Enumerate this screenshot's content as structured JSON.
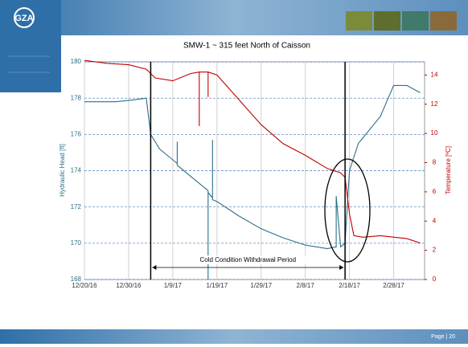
{
  "slide": {
    "logo": "GZA",
    "footer": "Page | 20"
  },
  "chart_data": {
    "type": "line",
    "title": "SMW-1 ~ 315 feet North of Caisson",
    "ylabel": "Hydraulic Head [ft]",
    "y2label": "Temperature [ºC]",
    "xlim": [
      "2016-12-20",
      "2017-03-07"
    ],
    "xticks": [
      {
        "value": "2016-12-20",
        "label": "12/20/16"
      },
      {
        "value": "2016-12-30",
        "label": "12/30/16"
      },
      {
        "value": "2017-01-09",
        "label": "1/9/17"
      },
      {
        "value": "2017-01-19",
        "label": "1/19/17"
      },
      {
        "value": "2017-01-29",
        "label": "1/29/17"
      },
      {
        "value": "2017-02-08",
        "label": "2/8/17"
      },
      {
        "value": "2017-02-18",
        "label": "2/18/17"
      },
      {
        "value": "2017-02-28",
        "label": "2/28/17"
      }
    ],
    "ylim": [
      168,
      180
    ],
    "yticks": [
      168,
      170,
      172,
      174,
      176,
      178,
      180
    ],
    "y2lim": [
      0,
      14.9
    ],
    "y2ticks": [
      0,
      2,
      4,
      6,
      8,
      10,
      12,
      14
    ],
    "grid": true,
    "annotation": {
      "text": "Cold Condition Withdrawal Period",
      "x": [
        "2017-01-04",
        "2017-02-17"
      ]
    },
    "series": [
      {
        "color": "#2c6e8a",
        "x": [
          "2016-12-20",
          "2016-12-23",
          "2016-12-27",
          "2016-12-31",
          "2017-01-03",
          "2017-01-04",
          "2017-01-06",
          "2017-01-09",
          "2017-01-10",
          "2017-01-10",
          "2017-01-10",
          "2017-01-14",
          "2017-01-17",
          "2017-01-17",
          "2017-01-17",
          "2017-01-18",
          "2017-01-18",
          "2017-01-18",
          "2017-01-19",
          "2017-01-24",
          "2017-01-29",
          "2017-02-03",
          "2017-02-08",
          "2017-02-13",
          "2017-02-15",
          "2017-02-15",
          "2017-02-16",
          "2017-02-17",
          "2017-02-18",
          "2017-02-20",
          "2017-02-25",
          "2017-02-28",
          "2017-03-03",
          "2017-03-06"
        ],
        "values": [
          177.8,
          177.8,
          177.8,
          177.9,
          178.0,
          176.0,
          175.2,
          174.6,
          174.4,
          175.6,
          174.3,
          173.5,
          172.9,
          168.0,
          172.8,
          172.5,
          175.7,
          172.4,
          172.3,
          171.5,
          170.8,
          170.3,
          169.9,
          169.7,
          169.8,
          172.6,
          169.8,
          170.0,
          174.0,
          175.5,
          177.0,
          178.7,
          178.7,
          178.3
        ],
        "axis": "y"
      },
      {
        "color": "#c00000",
        "x": [
          "2016-12-20",
          "2016-12-25",
          "2016-12-30",
          "2017-01-03",
          "2017-01-05",
          "2017-01-09",
          "2017-01-13",
          "2017-01-15",
          "2017-01-15",
          "2017-01-15",
          "2017-01-17",
          "2017-01-17",
          "2017-01-17",
          "2017-01-19",
          "2017-01-24",
          "2017-01-29",
          "2017-02-03",
          "2017-02-08",
          "2017-02-13",
          "2017-02-16",
          "2017-02-17",
          "2017-02-18",
          "2017-02-19",
          "2017-02-21",
          "2017-02-25",
          "2017-03-03",
          "2017-03-06"
        ],
        "values": [
          15.0,
          14.8,
          14.7,
          14.4,
          13.8,
          13.6,
          14.1,
          14.2,
          10.5,
          14.2,
          14.2,
          12.5,
          14.2,
          14.0,
          12.3,
          10.6,
          9.3,
          8.5,
          7.6,
          7.3,
          7.0,
          4.5,
          3.0,
          2.9,
          3.0,
          2.8,
          2.5
        ],
        "axis": "y2"
      }
    ]
  }
}
